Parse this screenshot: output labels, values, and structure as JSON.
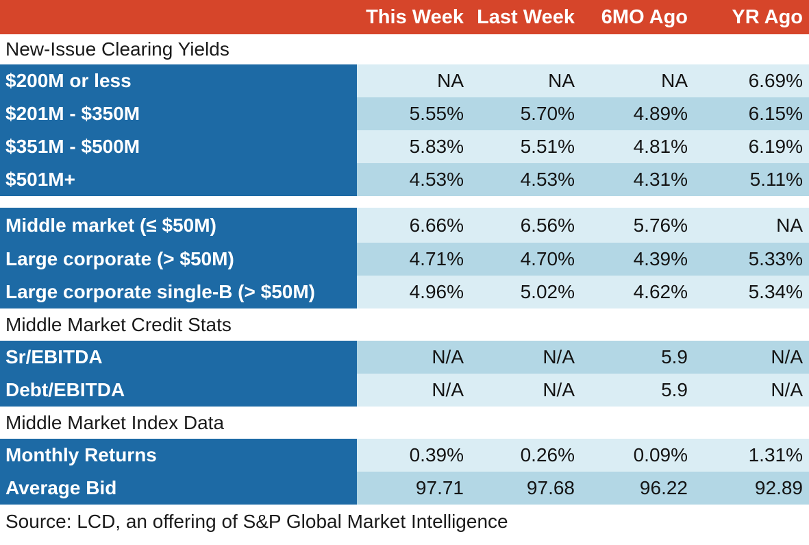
{
  "header": {
    "columns": [
      "This Week",
      "Last Week",
      "6MO Ago",
      "YR Ago"
    ]
  },
  "sections": {
    "new_issue": "New-Issue Clearing Yields",
    "credit_stats": "Middle Market Credit Stats",
    "index_data": "Middle Market Index Data"
  },
  "rows": {
    "r200": {
      "label": "$200M or less",
      "values": [
        "NA",
        "NA",
        "NA",
        "6.69%"
      ]
    },
    "r201": {
      "label": "$201M - $350M",
      "values": [
        "5.55%",
        "5.70%",
        "4.89%",
        "6.15%"
      ]
    },
    "r351": {
      "label": "$351M - $500M",
      "values": [
        "5.83%",
        "5.51%",
        "4.81%",
        "6.19%"
      ]
    },
    "r501": {
      "label": "$501M+",
      "values": [
        "4.53%",
        "4.53%",
        "4.31%",
        "5.11%"
      ]
    },
    "mm": {
      "label": "Middle market (≤ $50M)",
      "values": [
        "6.66%",
        "6.56%",
        "5.76%",
        "NA"
      ]
    },
    "lc": {
      "label": "Large corporate (> $50M)",
      "values": [
        "4.71%",
        "4.70%",
        "4.39%",
        "5.33%"
      ]
    },
    "lcb": {
      "label": "Large corporate single-B (> $50M)",
      "values": [
        "4.96%",
        "5.02%",
        "4.62%",
        "5.34%"
      ]
    },
    "sr": {
      "label": "Sr/EBITDA",
      "values": [
        "N/A",
        "N/A",
        "5.9",
        "N/A"
      ]
    },
    "debt": {
      "label": "Debt/EBITDA",
      "values": [
        "N/A",
        "N/A",
        "5.9",
        "N/A"
      ]
    },
    "monthly": {
      "label": "Monthly Returns",
      "values": [
        "0.39%",
        "0.26%",
        "0.09%",
        "1.31%"
      ]
    },
    "bid": {
      "label": "Average Bid",
      "values": [
        "97.71",
        "97.68",
        "96.22",
        "92.89"
      ]
    }
  },
  "source": "Source: LCD, an offering of S&P Global Market Intelligence",
  "colors": {
    "header_bg": "#d6452a",
    "label_bg": "#1d6aa5",
    "row_light": "#daedf4",
    "row_mid": "#b3d7e5"
  }
}
